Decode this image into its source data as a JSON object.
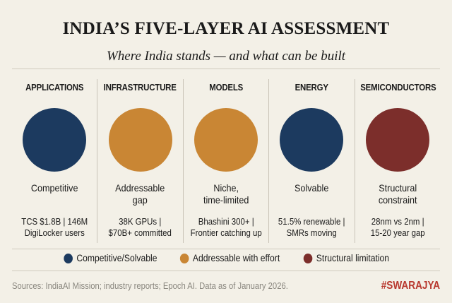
{
  "header": {
    "title": "INDIA’S FIVE-LAYER AI ASSESSMENT",
    "subtitle": "Where India stands — and what can be built"
  },
  "colors": {
    "competitive": "#1c3a5f",
    "addressable": "#c98634",
    "structural": "#7c2e2b"
  },
  "layers": [
    {
      "name": "APPLICATIONS",
      "status": "Competitive",
      "detail_1": "TCS $1.8B | 146M",
      "detail_2": "DigiLocker users",
      "rating": "competitive"
    },
    {
      "name": "INFRASTRUCTURE",
      "status": "Addressable gap",
      "detail_1": "38K GPUs |",
      "detail_2": "$70B+ committed",
      "rating": "addressable"
    },
    {
      "name": "MODELS",
      "status": "Niche, time-limited",
      "detail_1": "Bhashini 300+ |",
      "detail_2": "Frontier catching up",
      "rating": "addressable"
    },
    {
      "name": "ENERGY",
      "status": "Solvable",
      "detail_1": "51.5% renewable |",
      "detail_2": "SMRs moving",
      "rating": "competitive"
    },
    {
      "name": "SEMICONDUCTORS",
      "status": "Structural constraint",
      "detail_1": "28nm vs 2nm |",
      "detail_2": "15-20 year gap",
      "rating": "structural"
    }
  ],
  "legend": [
    {
      "label": "Competitive/Solvable",
      "rating": "competitive"
    },
    {
      "label": "Addressable with effort",
      "rating": "addressable"
    },
    {
      "label": "Structural limitation",
      "rating": "structural"
    }
  ],
  "footer": {
    "sources": "Sources: IndiaAI Mission; industry reports; Epoch AI. Data as of January 2026.",
    "brand": "#SWARAJYA"
  }
}
